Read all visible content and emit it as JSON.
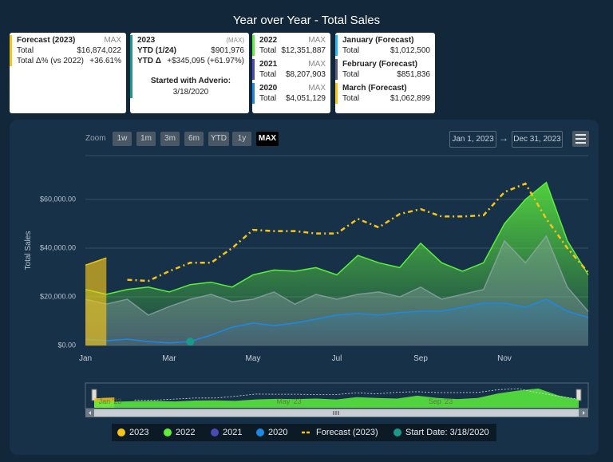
{
  "header": {
    "title": "Year over Year - Total Sales"
  },
  "cards": [
    {
      "sections": [
        {
          "title": "Forecast (2023)",
          "tag": "MAX",
          "color": "#f5c518",
          "rows": [
            {
              "label": "Total",
              "value": "$16,874,022"
            },
            {
              "label": "Total Δ% (vs 2022)",
              "value": "+36.61%"
            }
          ]
        }
      ]
    },
    {
      "sections": [
        {
          "title": "2023",
          "tag": "(MAX)",
          "color": "#1a9a8a",
          "rows": [
            {
              "label": "YTD (1/24)",
              "value": "$901,976"
            },
            {
              "label": "YTD Δ",
              "value": "+$345,095 (+61.97%)"
            }
          ],
          "note": {
            "title": "Started with Adverio:",
            "value": "3/18/2020"
          }
        }
      ]
    },
    {
      "sections": [
        {
          "title": "2022",
          "tag": "MAX",
          "color": "#5cf03c",
          "rows": [
            {
              "label": "Total",
              "value": "$12,351,887"
            }
          ]
        },
        {
          "title": "2021",
          "tag": "MAX",
          "color": "#4a4ab8",
          "rows": [
            {
              "label": "Total",
              "value": "$8,207,903"
            }
          ]
        },
        {
          "title": "2020",
          "tag": "MAX",
          "color": "#1e88e5",
          "rows": [
            {
              "label": "Total",
              "value": "$4,051,129"
            }
          ]
        }
      ]
    },
    {
      "sections": [
        {
          "title": "January (Forecast)",
          "color": "#29b6f6",
          "rows": [
            {
              "label": "Total",
              "value": "$1,012,500"
            }
          ]
        },
        {
          "title": "February (Forecast)",
          "color": "#5a5a7a",
          "rows": [
            {
              "label": "Total",
              "value": "$851,836"
            }
          ]
        },
        {
          "title": "March (Forecast)",
          "color": "#f5c518",
          "rows": [
            {
              "label": "Total",
              "value": "$1,062,899"
            }
          ]
        }
      ]
    }
  ],
  "toolbar": {
    "zoom_label": "Zoom",
    "buttons": [
      "1w",
      "1m",
      "3m",
      "6m",
      "YTD",
      "1y",
      "MAX"
    ],
    "active_index": 6,
    "range_from": "Jan 1, 2023",
    "range_separator": "→",
    "range_to": "Dec 31, 2023"
  },
  "navigator": {
    "labels": [
      "Jan '23",
      "May '23",
      "Sep '23"
    ]
  },
  "chart_data": {
    "type": "area",
    "y_label": "Total Sales",
    "categories": [
      "Jan",
      null,
      null,
      null,
      "Mar",
      null,
      null,
      null,
      "May",
      null,
      null,
      null,
      "Jul",
      null,
      null,
      null,
      "Sep",
      null,
      null,
      null,
      "Nov",
      null,
      null,
      null,
      null
    ],
    "ylim": [
      0,
      78000
    ],
    "yticks": [
      {
        "value": 0,
        "label": "$0.00"
      },
      {
        "value": 20000,
        "label": "$20,000.00"
      },
      {
        "value": 40000,
        "label": "$40,000.00"
      },
      {
        "value": 60000,
        "label": "$60,000.00"
      }
    ],
    "grid": true,
    "series": [
      {
        "name": "2023",
        "color": "#f5c518",
        "style": "area",
        "values": [
          33000,
          36000,
          null,
          null,
          null,
          null,
          null,
          null,
          null,
          null,
          null,
          null,
          null,
          null,
          null,
          null,
          null,
          null,
          null,
          null,
          null,
          null,
          null,
          null,
          null
        ]
      },
      {
        "name": "2022",
        "color": "#5cf03c",
        "style": "area",
        "values": [
          23000,
          21000,
          23000,
          24000,
          22000,
          25000,
          26000,
          24000,
          29000,
          31000,
          30500,
          32000,
          29000,
          37000,
          34000,
          32000,
          42000,
          34000,
          30500,
          34000,
          50000,
          60000,
          67000,
          43000,
          29000
        ]
      },
      {
        "name": "2021",
        "color": "#4a4ab8",
        "area_color": "#9aa8b4",
        "style": "area",
        "values": [
          19000,
          17000,
          19000,
          12500,
          16000,
          19000,
          21000,
          18000,
          19000,
          22000,
          17000,
          21000,
          19000,
          21000,
          22000,
          20000,
          24000,
          19000,
          21000,
          23000,
          43000,
          34000,
          45000,
          24000,
          14000
        ]
      },
      {
        "name": "2020",
        "color": "#1e88e5",
        "style": "area",
        "values": [
          2600,
          2000,
          2600,
          1600,
          1000,
          1600,
          4300,
          7500,
          9200,
          8200,
          9200,
          10800,
          12500,
          13100,
          12500,
          13500,
          14100,
          14100,
          15700,
          17400,
          17400,
          15700,
          19000,
          14100,
          11500
        ]
      },
      {
        "name": "Forecast (2023)",
        "color": "#f5c518",
        "style": "dashed",
        "values": [
          null,
          null,
          27000,
          26500,
          30500,
          34000,
          34000,
          40000,
          47500,
          47000,
          47000,
          46000,
          46000,
          52000,
          48500,
          54000,
          56000,
          53000,
          53000,
          53500,
          63000,
          66500,
          52000,
          40000,
          30000
        ]
      },
      {
        "name": "Start Date: 3/18/2020",
        "color": "#1a9a8a",
        "style": "marker",
        "values": [
          null,
          null,
          null,
          null,
          null,
          1600,
          null,
          null,
          null,
          null,
          null,
          null,
          null,
          null,
          null,
          null,
          null,
          null,
          null,
          null,
          null,
          null,
          null,
          null,
          null
        ]
      }
    ]
  }
}
